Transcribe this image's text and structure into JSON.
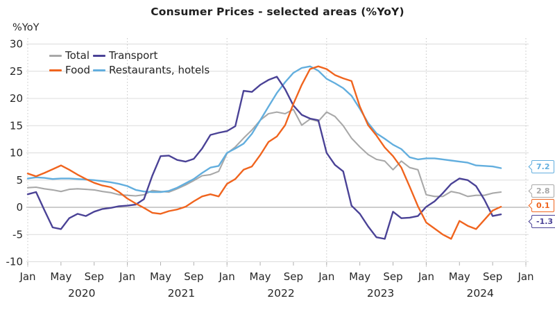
{
  "title": "Consumer Prices - selected areas (%YoY)",
  "y_axis_unit": "%YoY",
  "legend": {
    "items": [
      {
        "label": "Total",
        "color": "#a8a8a8"
      },
      {
        "label": "Transport",
        "color": "#4a4296"
      },
      {
        "label": "Food",
        "color": "#f0641e"
      },
      {
        "label": "Restaurants, hotels",
        "color": "#62aede"
      }
    ]
  },
  "end_labels": [
    {
      "text": "7.2",
      "color": "#62aede",
      "series": "Restaurants, hotels"
    },
    {
      "text": "2.8",
      "color": "#a8a8a8",
      "series": "Total"
    },
    {
      "text": "0.1",
      "color": "#f0641e",
      "series": "Food"
    },
    {
      "text": "-1.3",
      "color": "#4a4296",
      "series": "Transport"
    }
  ],
  "chart_data": {
    "type": "line",
    "title": "Consumer Prices - selected areas (%YoY)",
    "x_start": "2020-01",
    "x_end": "2024-10",
    "frequency": "monthly",
    "ylim": [
      -10,
      30
    ],
    "yticks": [
      30,
      25,
      20,
      15,
      10,
      5,
      0,
      -5,
      -10
    ],
    "x_tick_months": [
      "Jan",
      "May",
      "Sep"
    ],
    "x_years": [
      "2020",
      "2021",
      "2022",
      "2023",
      "2024"
    ],
    "x_axis_end_label": "Jan",
    "grid": "horizontal solid; vertical dotted at each January",
    "legend_position": "top-left inside plot",
    "series": [
      {
        "name": "Total",
        "color": "#a8a8a8",
        "values": [
          3.6,
          3.7,
          3.4,
          3.2,
          2.9,
          3.3,
          3.4,
          3.3,
          3.2,
          2.9,
          2.7,
          2.3,
          2.2,
          2.1,
          2.3,
          3.1,
          2.9,
          2.8,
          3.4,
          4.1,
          4.9,
          5.8,
          6.0,
          6.6,
          9.9,
          11.1,
          12.7,
          14.2,
          16.0,
          17.2,
          17.5,
          17.2,
          18.0,
          15.1,
          16.2,
          15.8,
          17.5,
          16.7,
          15.0,
          12.7,
          11.1,
          9.7,
          8.8,
          8.5,
          6.9,
          8.5,
          7.3,
          6.9,
          2.3,
          2.0,
          2.0,
          2.9,
          2.6,
          2.0,
          2.2,
          2.2,
          2.6,
          2.8
        ]
      },
      {
        "name": "Restaurants, hotels",
        "color": "#62aede",
        "values": [
          5.3,
          5.5,
          5.4,
          5.2,
          5.3,
          5.3,
          5.2,
          5.1,
          5.0,
          4.8,
          4.6,
          4.3,
          3.9,
          3.2,
          2.9,
          2.8,
          2.8,
          3.0,
          3.6,
          4.4,
          5.2,
          6.3,
          7.3,
          7.6,
          10.0,
          10.8,
          11.7,
          13.5,
          16.0,
          18.5,
          21.0,
          23.0,
          24.7,
          25.6,
          25.9,
          25.1,
          23.6,
          22.8,
          21.9,
          20.5,
          18.1,
          15.5,
          13.6,
          12.6,
          11.5,
          10.7,
          9.2,
          8.8,
          9.0,
          9.0,
          8.8,
          8.6,
          8.4,
          8.2,
          7.7,
          7.6,
          7.5,
          7.2
        ]
      },
      {
        "name": "Transport",
        "color": "#4a4296",
        "values": [
          2.4,
          2.8,
          -0.5,
          -3.7,
          -4.0,
          -2.0,
          -1.2,
          -1.6,
          -0.8,
          -0.3,
          -0.1,
          0.2,
          0.3,
          0.5,
          1.5,
          5.8,
          9.4,
          9.5,
          8.7,
          8.4,
          8.9,
          10.8,
          13.3,
          13.7,
          14.0,
          14.9,
          21.4,
          21.2,
          22.5,
          23.4,
          24.0,
          21.7,
          18.7,
          17.0,
          16.3,
          16.0,
          10.0,
          7.8,
          6.6,
          0.3,
          -1.2,
          -3.5,
          -5.5,
          -5.8,
          -0.8,
          -2.0,
          -1.9,
          -1.6,
          0.1,
          1.1,
          2.6,
          4.3,
          5.3,
          5.0,
          3.9,
          1.4,
          -1.6,
          -1.3
        ]
      },
      {
        "name": "Food",
        "color": "#f0641e",
        "values": [
          6.2,
          5.7,
          6.3,
          7.0,
          7.7,
          6.9,
          6.0,
          5.2,
          4.5,
          4.0,
          3.7,
          2.8,
          1.6,
          0.7,
          -0.1,
          -1.0,
          -1.2,
          -0.7,
          -0.4,
          0.1,
          1.1,
          2.0,
          2.4,
          2.0,
          4.3,
          5.2,
          6.9,
          7.5,
          9.6,
          12.0,
          13.0,
          15.1,
          19.0,
          22.5,
          25.4,
          25.9,
          25.4,
          24.3,
          23.7,
          23.2,
          18.5,
          15.1,
          13.2,
          11.0,
          9.4,
          7.3,
          3.8,
          0.2,
          -2.8,
          -3.9,
          -5.0,
          -5.8,
          -2.5,
          -3.4,
          -4.0,
          -2.3,
          -0.6,
          0.1
        ]
      }
    ]
  }
}
